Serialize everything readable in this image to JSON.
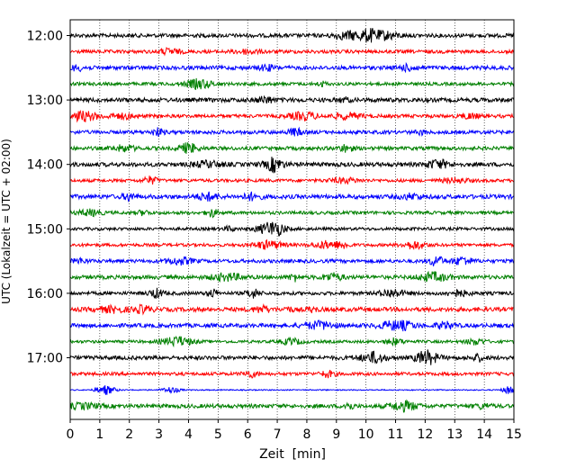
{
  "chart_data": {
    "type": "line",
    "title": "",
    "xlabel": "Zeit  [min]",
    "ylabel": "UTC (Lokalzeit = UTC + 02:00)",
    "xlim": [
      0,
      15
    ],
    "x_ticks": [
      0,
      1,
      2,
      3,
      4,
      5,
      6,
      7,
      8,
      9,
      10,
      11,
      12,
      13,
      14,
      15
    ],
    "y_tick_labels": [
      "12:00",
      "13:00",
      "14:00",
      "15:00",
      "16:00",
      "17:00"
    ],
    "grid": "vertical dotted",
    "trace_interval_min": 15,
    "colors": [
      "#000000",
      "#ff0000",
      "#0000ff",
      "#008000"
    ],
    "traces": [
      {
        "start": "12:00",
        "color": "#000000"
      },
      {
        "start": "12:15",
        "color": "#ff0000"
      },
      {
        "start": "12:30",
        "color": "#0000ff"
      },
      {
        "start": "12:45",
        "color": "#008000"
      },
      {
        "start": "13:00",
        "color": "#000000"
      },
      {
        "start": "13:15",
        "color": "#ff0000"
      },
      {
        "start": "13:30",
        "color": "#0000ff"
      },
      {
        "start": "13:45",
        "color": "#008000"
      },
      {
        "start": "14:00",
        "color": "#000000"
      },
      {
        "start": "14:15",
        "color": "#ff0000"
      },
      {
        "start": "14:30",
        "color": "#0000ff"
      },
      {
        "start": "14:45",
        "color": "#008000"
      },
      {
        "start": "15:00",
        "color": "#000000"
      },
      {
        "start": "15:15",
        "color": "#ff0000"
      },
      {
        "start": "15:30",
        "color": "#0000ff"
      },
      {
        "start": "15:45",
        "color": "#008000"
      },
      {
        "start": "16:00",
        "color": "#000000"
      },
      {
        "start": "16:15",
        "color": "#ff0000"
      },
      {
        "start": "16:30",
        "color": "#0000ff"
      },
      {
        "start": "16:45",
        "color": "#008000"
      },
      {
        "start": "17:00",
        "color": "#000000"
      },
      {
        "start": "17:15",
        "color": "#ff0000"
      },
      {
        "start": "17:30",
        "color": "#0000ff"
      },
      {
        "start": "17:45",
        "color": "#008000"
      }
    ]
  }
}
